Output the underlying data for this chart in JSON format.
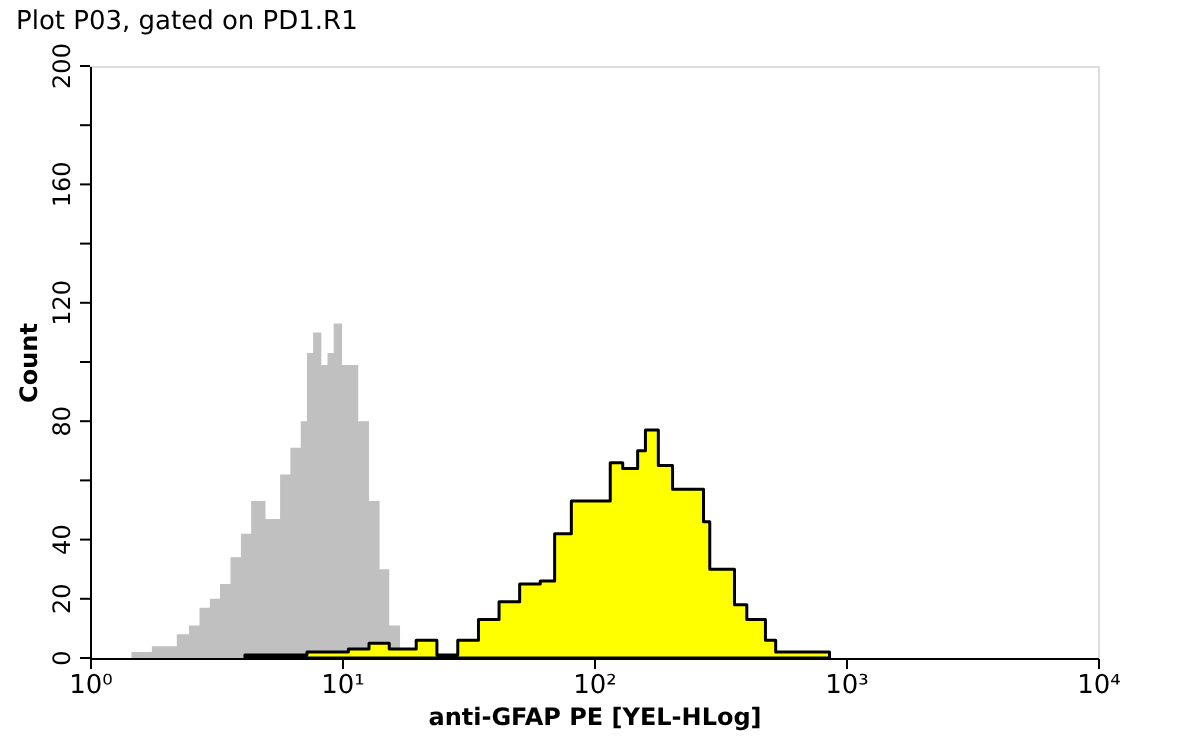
{
  "chart_data": {
    "type": "area",
    "title": "Plot P03, gated on PD1.R1",
    "xlabel": "anti-GFAP PE [YEL-HLog]",
    "ylabel": "Count",
    "log": "x",
    "xlim": [
      1,
      10000
    ],
    "xticks": [
      {
        "value": 1,
        "label": "10⁰"
      },
      {
        "value": 10,
        "label": "10¹"
      },
      {
        "value": 100,
        "label": "10²"
      },
      {
        "value": 1000,
        "label": "10³"
      },
      {
        "value": 10000,
        "label": "10⁴"
      }
    ],
    "ylim": [
      0,
      200
    ],
    "yticks": [
      0,
      20,
      40,
      {
        "value": 60,
        "label": null
      },
      80,
      {
        "value": 100,
        "label": null
      },
      120,
      {
        "value": 140,
        "label": null
      },
      160,
      {
        "value": 180,
        "label": null
      },
      200
    ],
    "grid": false,
    "series": [
      {
        "color": "#c0c0c0",
        "x": [
          1.46,
          1.76,
          2.21,
          2.47,
          2.72,
          2.99,
          3.28,
          3.61,
          3.97,
          4.36,
          4.97,
          5.68,
          6.24,
          6.86,
          7.26,
          7.68,
          8.28,
          8.76,
          9.27,
          10,
          11.0,
          11.6,
          12.8,
          14.1,
          15.4,
          17.0
        ],
        "values": [
          2,
          4,
          8,
          11,
          17,
          20,
          25,
          34,
          42,
          53,
          47,
          62,
          71,
          80,
          103,
          110,
          99,
          103,
          113,
          99,
          99,
          80,
          53,
          30,
          11,
          0
        ]
      },
      {
        "color": "#ffff00",
        "line_style": "solid",
        "x": [
          4.12,
          7.26,
          10.6,
          12.8,
          15.4,
          19.7,
          23.8,
          28.8,
          34.8,
          42.0,
          50.7,
          61.2,
          69.8,
          81.3,
          96.3,
          116,
          130,
          149,
          160,
          180,
          205,
          247,
          272,
          288,
          335,
          361,
          404,
          479,
          526,
          673,
          860
        ],
        "values": [
          1,
          2,
          3,
          5,
          3,
          6,
          1,
          6,
          13,
          19,
          25,
          26,
          42,
          53,
          53,
          66,
          64,
          70,
          77,
          65,
          57,
          57,
          46,
          30,
          30,
          18,
          13,
          6,
          2,
          2,
          0
        ]
      }
    ]
  }
}
